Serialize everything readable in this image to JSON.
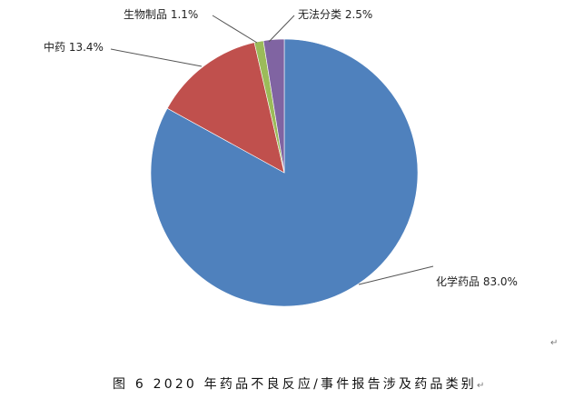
{
  "chart_data": {
    "type": "pie",
    "start_angle": "top, clockwise",
    "slices": [
      {
        "label": "化学药品",
        "value": 83.0,
        "display": "化学药品 83.0%",
        "color": "#4f81bd"
      },
      {
        "label": "中药",
        "value": 13.4,
        "display": "中药 13.4%",
        "color": "#c0504d"
      },
      {
        "label": "生物制品",
        "value": 1.1,
        "display": "生物制品 1.1%",
        "color": "#9bbb59"
      },
      {
        "label": "无法分类",
        "value": 2.5,
        "display": "无法分类 2.5%",
        "color": "#8064a2"
      }
    ]
  },
  "caption": "图 6 2020 年药品不良反应/事件报告涉及药品类别",
  "return_mark": "↵"
}
